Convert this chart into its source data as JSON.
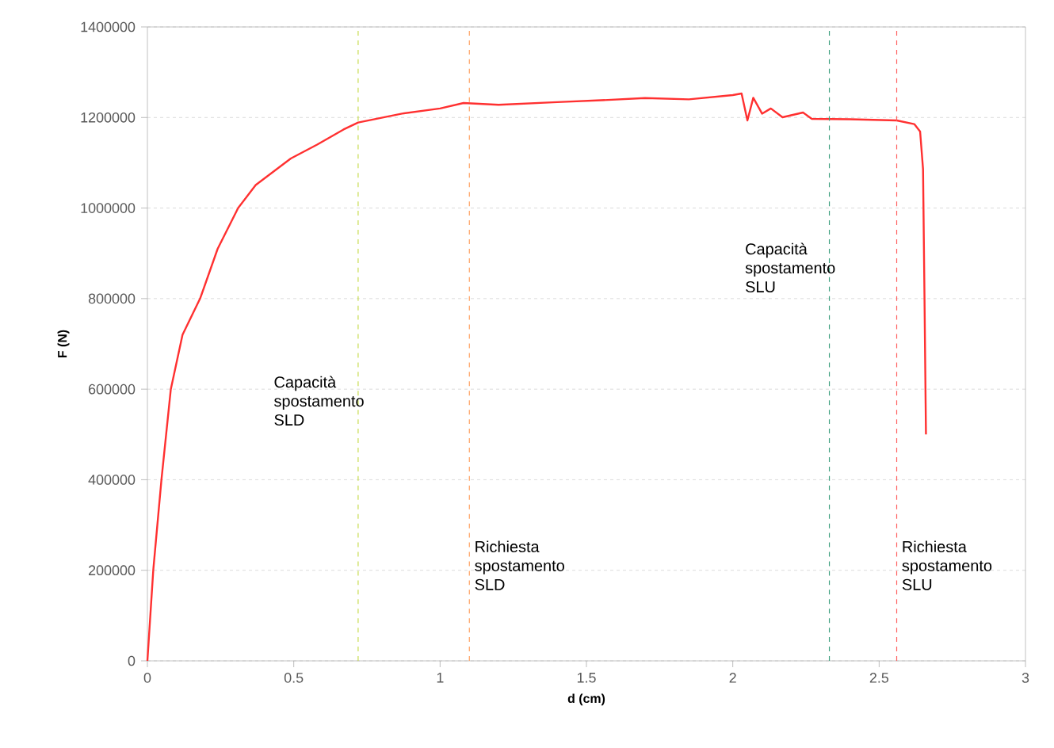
{
  "chart_data": {
    "type": "line",
    "xlabel": "d (cm)",
    "ylabel": "F (N)",
    "xlim": [
      0,
      3
    ],
    "xticks": [
      0,
      0.5,
      1,
      1.5,
      2,
      2.5,
      3
    ],
    "ylim": [
      0,
      1400000
    ],
    "yticks": [
      0,
      200000,
      400000,
      600000,
      800000,
      1000000,
      1200000,
      1400000
    ],
    "grid": "y",
    "line_style": "solid",
    "series": [
      {
        "color": "#ff3030",
        "x": [
          0,
          0.02,
          0.048,
          0.08,
          0.12,
          0.18,
          0.24,
          0.31,
          0.37,
          0.49,
          0.58,
          0.67,
          0.72,
          0.87,
          1.0,
          1.08,
          1.2,
          1.4,
          1.55,
          1.7,
          1.85,
          2.0,
          2.03,
          2.05,
          2.07,
          2.1,
          2.13,
          2.17,
          2.24,
          2.27,
          2.4,
          2.56,
          2.62,
          2.64,
          2.65,
          2.655,
          2.66
        ],
        "values": [
          0,
          200000,
          400000,
          600000,
          720000,
          800000,
          910000,
          1000000,
          1051000,
          1109500,
          1140000,
          1173500,
          1189000,
          1208600,
          1220000,
          1232000,
          1228000,
          1234000,
          1238000,
          1243000,
          1240000,
          1249500,
          1253000,
          1193500,
          1243500,
          1208500,
          1220000,
          1200500,
          1211000,
          1197000,
          1196000,
          1193500,
          1185500,
          1169000,
          1086000,
          800000,
          500000
        ]
      }
    ],
    "ref_lines": [
      {
        "axis": "x",
        "value": 0.72,
        "color": "#c8dc50",
        "line_style": "dashed",
        "label": "Capacità spostamento SLD"
      },
      {
        "axis": "x",
        "value": 1.1,
        "color": "#ffa060",
        "line_style": "dashed",
        "label": "Richiesta spostamento SLD"
      },
      {
        "axis": "x",
        "value": 2.33,
        "color": "#40a080",
        "line_style": "dashed",
        "label": "Capacità spostamento SLU"
      },
      {
        "axis": "x",
        "value": 2.56,
        "color": "#ff6060",
        "line_style": "dashed",
        "label": "Richiesta spostamento SLU"
      }
    ]
  }
}
